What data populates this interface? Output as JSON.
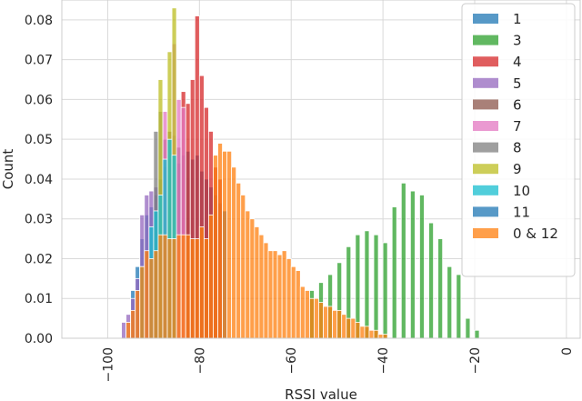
{
  "chart_data": {
    "type": "histogram",
    "title": "",
    "xlabel": "RSSI value",
    "ylabel": "Count",
    "xlim": [
      -110,
      3
    ],
    "ylim": [
      0,
      0.085
    ],
    "xticks": [
      -100,
      -80,
      -60,
      -40,
      -20,
      0
    ],
    "xtick_labels": [
      "−100",
      "−80",
      "−60",
      "−40",
      "−20",
      "0"
    ],
    "yticks": [
      0.0,
      0.01,
      0.02,
      0.03,
      0.04,
      0.05,
      0.06,
      0.07,
      0.08
    ],
    "ytick_labels": [
      "0.00",
      "0.01",
      "0.02",
      "0.03",
      "0.04",
      "0.05",
      "0.06",
      "0.07",
      "0.08"
    ],
    "grid": true,
    "legend_position": "top-right",
    "bin_width": 1,
    "series": [
      {
        "name": "1",
        "color": "#1f77b4",
        "bins": [
          [
            -95,
            0.012
          ],
          [
            -94,
            0.018
          ],
          [
            -93,
            0.025
          ],
          [
            -92,
            0.031
          ],
          [
            -91,
            0.033
          ],
          [
            -90,
            0.036
          ],
          [
            -89,
            0.04
          ],
          [
            -88,
            0.043
          ],
          [
            -87,
            0.045
          ],
          [
            -86,
            0.046
          ],
          [
            -85,
            0.044
          ],
          [
            -84,
            0.046
          ],
          [
            -83,
            0.047
          ],
          [
            -82,
            0.045
          ],
          [
            -81,
            0.046
          ],
          [
            -80,
            0.042
          ],
          [
            -79,
            0.04
          ],
          [
            -78,
            0.038
          ],
          [
            -77,
            0.036
          ],
          [
            -76,
            0.034
          ],
          [
            -75,
            0.032
          ]
        ]
      },
      {
        "name": "3",
        "color": "#2ca02c",
        "bins": [
          [
            -56,
            0.012
          ],
          [
            -54,
            0.014
          ],
          [
            -52,
            0.016
          ],
          [
            -50,
            0.019
          ],
          [
            -48,
            0.023
          ],
          [
            -46,
            0.026
          ],
          [
            -44,
            0.027
          ],
          [
            -42,
            0.026
          ],
          [
            -40,
            0.024
          ],
          [
            -38,
            0.033
          ],
          [
            -36,
            0.039
          ],
          [
            -34,
            0.037
          ],
          [
            -32,
            0.036
          ],
          [
            -30,
            0.029
          ],
          [
            -28,
            0.025
          ],
          [
            -26,
            0.018
          ],
          [
            -24,
            0.016
          ],
          [
            -22,
            0.005
          ],
          [
            -20,
            0.002
          ]
        ]
      },
      {
        "name": "4",
        "color": "#d62728",
        "bins": [
          [
            -84,
            0.062
          ],
          [
            -83,
            0.059
          ],
          [
            -82,
            0.065
          ],
          [
            -81,
            0.081
          ],
          [
            -80,
            0.066
          ],
          [
            -79,
            0.058
          ],
          [
            -78,
            0.052
          ],
          [
            -77,
            0.043
          ],
          [
            -76,
            0.04
          ]
        ]
      },
      {
        "name": "5",
        "color": "#9467bd",
        "bins": [
          [
            -97,
            0.004
          ],
          [
            -96,
            0.006
          ],
          [
            -95,
            0.01
          ],
          [
            -94,
            0.015
          ],
          [
            -93,
            0.031
          ],
          [
            -92,
            0.036
          ],
          [
            -91,
            0.037
          ],
          [
            -90,
            0.038
          ]
        ]
      },
      {
        "name": "6",
        "color": "#8c564b",
        "bins": [
          [
            -88,
            0.05
          ],
          [
            -87,
            0.052
          ],
          [
            -86,
            0.051
          ],
          [
            -85,
            0.048
          ]
        ]
      },
      {
        "name": "7",
        "color": "#e377c2",
        "bins": [
          [
            -88,
            0.057
          ],
          [
            -86,
            0.074
          ],
          [
            -85,
            0.06
          ],
          [
            -84,
            0.058
          ]
        ]
      },
      {
        "name": "8",
        "color": "#7f7f7f",
        "bins": [
          [
            -90,
            0.052
          ],
          [
            -89,
            0.057
          ]
        ]
      },
      {
        "name": "9",
        "color": "#bcbd22",
        "bins": [
          [
            -89,
            0.065
          ],
          [
            -87,
            0.072
          ],
          [
            -86,
            0.083
          ]
        ]
      },
      {
        "name": "10",
        "color": "#17becf",
        "bins": [
          [
            -93,
            0.018
          ],
          [
            -91,
            0.028
          ],
          [
            -90,
            0.032
          ],
          [
            -89,
            0.036
          ],
          [
            -88,
            0.045
          ],
          [
            -87,
            0.05
          ],
          [
            -86,
            0.046
          ]
        ]
      },
      {
        "name": "11",
        "color": "#1f77b4",
        "bins": []
      },
      {
        "name": "0 & 12",
        "color": "#ff7f0e",
        "bins": [
          [
            -96,
            0.004
          ],
          [
            -95,
            0.007
          ],
          [
            -94,
            0.012
          ],
          [
            -93,
            0.018
          ],
          [
            -92,
            0.022
          ],
          [
            -91,
            0.02
          ],
          [
            -90,
            0.022
          ],
          [
            -89,
            0.026
          ],
          [
            -88,
            0.026
          ],
          [
            -87,
            0.025
          ],
          [
            -86,
            0.025
          ],
          [
            -85,
            0.026
          ],
          [
            -84,
            0.026
          ],
          [
            -83,
            0.026
          ],
          [
            -82,
            0.025
          ],
          [
            -81,
            0.025
          ],
          [
            -80,
            0.028
          ],
          [
            -79,
            0.025
          ],
          [
            -78,
            0.031
          ],
          [
            -77,
            0.046
          ],
          [
            -76,
            0.049
          ],
          [
            -75,
            0.047
          ],
          [
            -74,
            0.047
          ],
          [
            -73,
            0.043
          ],
          [
            -72,
            0.039
          ],
          [
            -71,
            0.036
          ],
          [
            -70,
            0.032
          ],
          [
            -69,
            0.03
          ],
          [
            -68,
            0.028
          ],
          [
            -67,
            0.026
          ],
          [
            -66,
            0.024
          ],
          [
            -65,
            0.022
          ],
          [
            -64,
            0.022
          ],
          [
            -63,
            0.021
          ],
          [
            -62,
            0.022
          ],
          [
            -61,
            0.02
          ],
          [
            -60,
            0.018
          ],
          [
            -59,
            0.017
          ],
          [
            -58,
            0.013
          ],
          [
            -57,
            0.012
          ],
          [
            -56,
            0.01
          ],
          [
            -55,
            0.01
          ],
          [
            -54,
            0.009
          ],
          [
            -53,
            0.008
          ],
          [
            -52,
            0.008
          ],
          [
            -51,
            0.007
          ],
          [
            -50,
            0.007
          ],
          [
            -49,
            0.006
          ],
          [
            -48,
            0.005
          ],
          [
            -47,
            0.005
          ],
          [
            -46,
            0.004
          ],
          [
            -45,
            0.003
          ],
          [
            -44,
            0.003
          ],
          [
            -43,
            0.002
          ],
          [
            -42,
            0.002
          ],
          [
            -41,
            0.001
          ],
          [
            -40,
            0.001
          ]
        ]
      }
    ]
  }
}
